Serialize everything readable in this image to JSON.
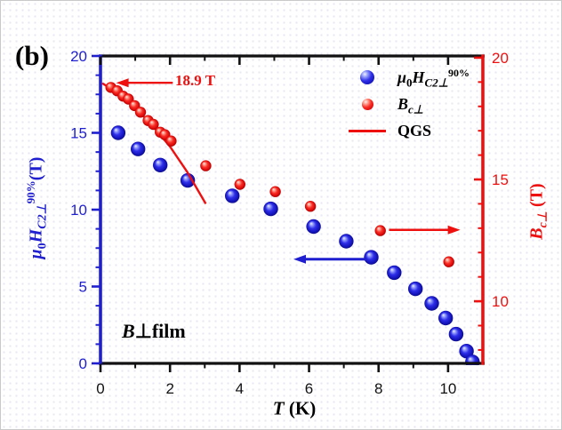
{
  "figure": {
    "panel_label": "(b)",
    "sample_label": {
      "b": "B",
      "perp": "⊥",
      "rest": "film"
    },
    "annotation_text": "18.9 T",
    "colors": {
      "blue": "#1f1fd0",
      "red": "#ee0f0f",
      "black": "#111111"
    }
  },
  "legend": {
    "items": [
      {
        "marker": "blue-sphere",
        "parts": {
          "mu": "μ",
          "sub0": "0",
          "H": "H",
          "subH": "C2⊥",
          "sup": "90%"
        }
      },
      {
        "marker": "red-sphere",
        "parts": {
          "B": "B",
          "subB": "c⊥"
        }
      },
      {
        "marker": "red-line",
        "label": "QGS"
      }
    ]
  },
  "axes": {
    "x": {
      "label_parts": {
        "symbol": "T",
        "unit": " (K)"
      },
      "range": [
        0,
        11
      ],
      "major_ticks": [
        0,
        2,
        4,
        6,
        8,
        10
      ],
      "minor_ticks": [
        1,
        3,
        5,
        7,
        9
      ]
    },
    "left": {
      "label_parts": {
        "mu": "μ",
        "sub0": "0",
        "H": "H",
        "subH": "C2⊥",
        "sup": "90%",
        "unit": "(T)"
      },
      "range": [
        0,
        20
      ],
      "major_ticks": [
        0,
        5,
        10,
        15,
        20
      ],
      "minor_ticks": [
        1.25,
        2.5,
        3.75,
        6.25,
        7.5,
        8.75,
        11.25,
        12.5,
        13.75,
        16.25,
        17.5,
        18.75
      ]
    },
    "right": {
      "label_parts": {
        "B": "B",
        "subB": "c⊥",
        "unit": " (T)"
      },
      "range": [
        7.45,
        20.07
      ],
      "major_ticks": [
        10,
        15,
        20
      ],
      "minor_ticks": [
        8,
        9,
        11,
        12,
        13,
        14,
        16,
        17,
        18,
        19
      ]
    }
  },
  "chart_data": {
    "type": "scatter",
    "title": "",
    "xlabel": "T (K)",
    "ylabel_left": "μ0HC2⊥ 90% (T)",
    "ylabel_right": "Bc⊥ (T)",
    "x_range": [
      0,
      11
    ],
    "yleft_range": [
      0,
      20
    ],
    "yright_range": [
      7.45,
      20.07
    ],
    "grid": false,
    "legend_position": "top-right-inside",
    "series": [
      {
        "name": "μ0HC2⊥ 90%",
        "axis": "left",
        "type": "scatter",
        "color": "#1f1fd0",
        "points": [
          [
            0.51,
            15.0
          ],
          [
            1.08,
            13.95
          ],
          [
            1.72,
            12.9
          ],
          [
            2.51,
            11.9
          ],
          [
            3.79,
            10.9
          ],
          [
            4.9,
            10.05
          ],
          [
            6.13,
            8.9
          ],
          [
            7.07,
            7.95
          ],
          [
            7.79,
            6.9
          ],
          [
            8.45,
            5.9
          ],
          [
            9.06,
            4.85
          ],
          [
            9.53,
            3.9
          ],
          [
            9.93,
            2.95
          ],
          [
            10.23,
            1.9
          ],
          [
            10.53,
            0.8
          ],
          [
            10.7,
            0.1
          ]
        ]
      },
      {
        "name": "Bc⊥",
        "axis": "right",
        "type": "scatter",
        "color": "#ee0f0f",
        "points": [
          [
            0.3,
            18.78
          ],
          [
            0.48,
            18.64
          ],
          [
            0.65,
            18.42
          ],
          [
            0.8,
            18.3
          ],
          [
            0.98,
            18.03
          ],
          [
            1.15,
            17.76
          ],
          [
            1.37,
            17.42
          ],
          [
            1.52,
            17.26
          ],
          [
            1.72,
            16.94
          ],
          [
            1.85,
            16.84
          ],
          [
            2.03,
            16.58
          ],
          [
            3.03,
            15.56
          ],
          [
            4.01,
            14.8
          ],
          [
            5.03,
            14.5
          ],
          [
            6.04,
            13.9
          ],
          [
            8.05,
            12.9
          ],
          [
            10.02,
            11.62
          ]
        ]
      },
      {
        "name": "QGS",
        "axis": "right",
        "type": "line",
        "color": "#ee0f0f",
        "points": [
          [
            0.05,
            18.95
          ],
          [
            0.5,
            18.55
          ],
          [
            1.0,
            17.95
          ],
          [
            1.5,
            17.2
          ],
          [
            2.0,
            16.35
          ],
          [
            2.5,
            15.3
          ],
          [
            3.03,
            14.0
          ]
        ]
      }
    ],
    "annotations": {
      "value_18_9": {
        "text": "18.9 T",
        "value_tesla": 18.9
      },
      "arrows": [
        {
          "name": "arrow-18-9t",
          "axis": "right",
          "y": 18.97,
          "from_t": 2.08,
          "to_t": 0.45,
          "color": "#ee0f0f",
          "width": 2.4
        },
        {
          "name": "left-axis-pointer-arrow",
          "axis": "left",
          "y": 6.78,
          "from_t": 7.65,
          "to_t": 5.55,
          "color": "#1f1fd0",
          "width": 3
        },
        {
          "name": "right-axis-pointer-arrow",
          "axis": "right",
          "y": 12.93,
          "from_t": 8.3,
          "to_t": 10.35,
          "color": "#ee0f0f",
          "width": 2.4
        }
      ]
    }
  }
}
